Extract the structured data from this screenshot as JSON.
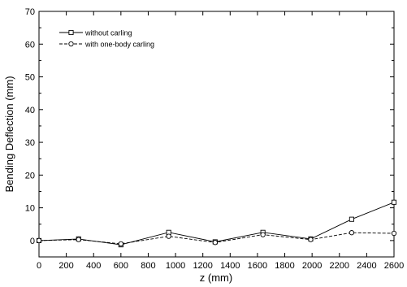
{
  "chart_data": {
    "type": "line",
    "title": "",
    "xlabel": "z (mm)",
    "ylabel": "Bending Deflection (mm)",
    "xlim": [
      0,
      2600
    ],
    "ylim": [
      -5,
      70
    ],
    "x_ticks": [
      0,
      200,
      400,
      600,
      800,
      1000,
      1200,
      1400,
      1600,
      1800,
      2000,
      2200,
      2400,
      2600
    ],
    "y_ticks": [
      0,
      10,
      20,
      30,
      40,
      50,
      60,
      70
    ],
    "legend_position": "top-left",
    "grid": false,
    "series": [
      {
        "name": "without carling",
        "marker": "square",
        "line_style": "solid",
        "x": [
          0,
          290,
          600,
          950,
          1290,
          1640,
          1990,
          2290,
          2600
        ],
        "y": [
          0,
          0.5,
          -1.3,
          2.5,
          -0.4,
          2.5,
          0.5,
          6.5,
          11.7
        ]
      },
      {
        "name": "with one-body carling",
        "marker": "circle",
        "line_style": "dashed",
        "x": [
          0,
          290,
          600,
          950,
          1290,
          1640,
          1990,
          2290,
          2600
        ],
        "y": [
          0,
          0.3,
          -1.0,
          1.3,
          -0.6,
          1.8,
          0.3,
          2.4,
          2.2
        ]
      }
    ]
  }
}
